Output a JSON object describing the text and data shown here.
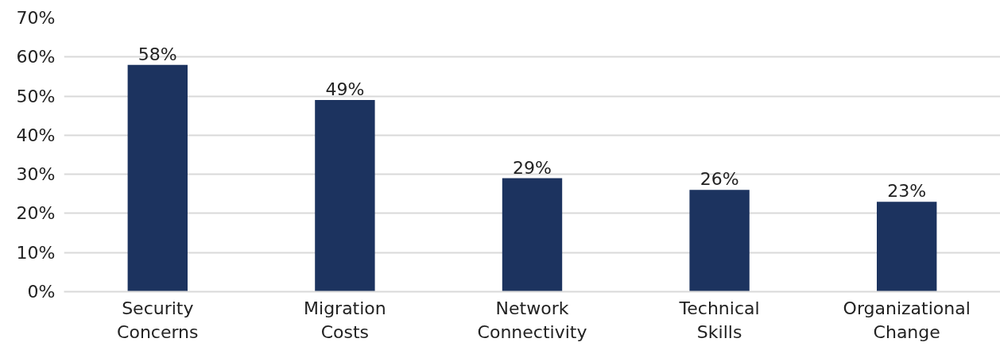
{
  "chart_data": {
    "type": "bar",
    "categories": [
      "Security\nConcerns",
      "Migration\nCosts",
      "Network\nConnectivity",
      "Technical\nSkills",
      "Organizational\nChange"
    ],
    "values": [
      58,
      49,
      29,
      26,
      23
    ],
    "value_labels": [
      "58%",
      "49%",
      "29%",
      "26%",
      "23%"
    ],
    "color": "#1c335f",
    "ylim": [
      0,
      70
    ],
    "yticks": [
      {
        "value": 0,
        "label": "0%"
      },
      {
        "value": 10,
        "label": "10%"
      },
      {
        "value": 20,
        "label": "20%"
      },
      {
        "value": 30,
        "label": "30%"
      },
      {
        "value": 40,
        "label": "40%"
      },
      {
        "value": 50,
        "label": "50%"
      },
      {
        "value": 60,
        "label": "60%"
      },
      {
        "value": 70,
        "label": "70%"
      }
    ],
    "grid": "y"
  }
}
